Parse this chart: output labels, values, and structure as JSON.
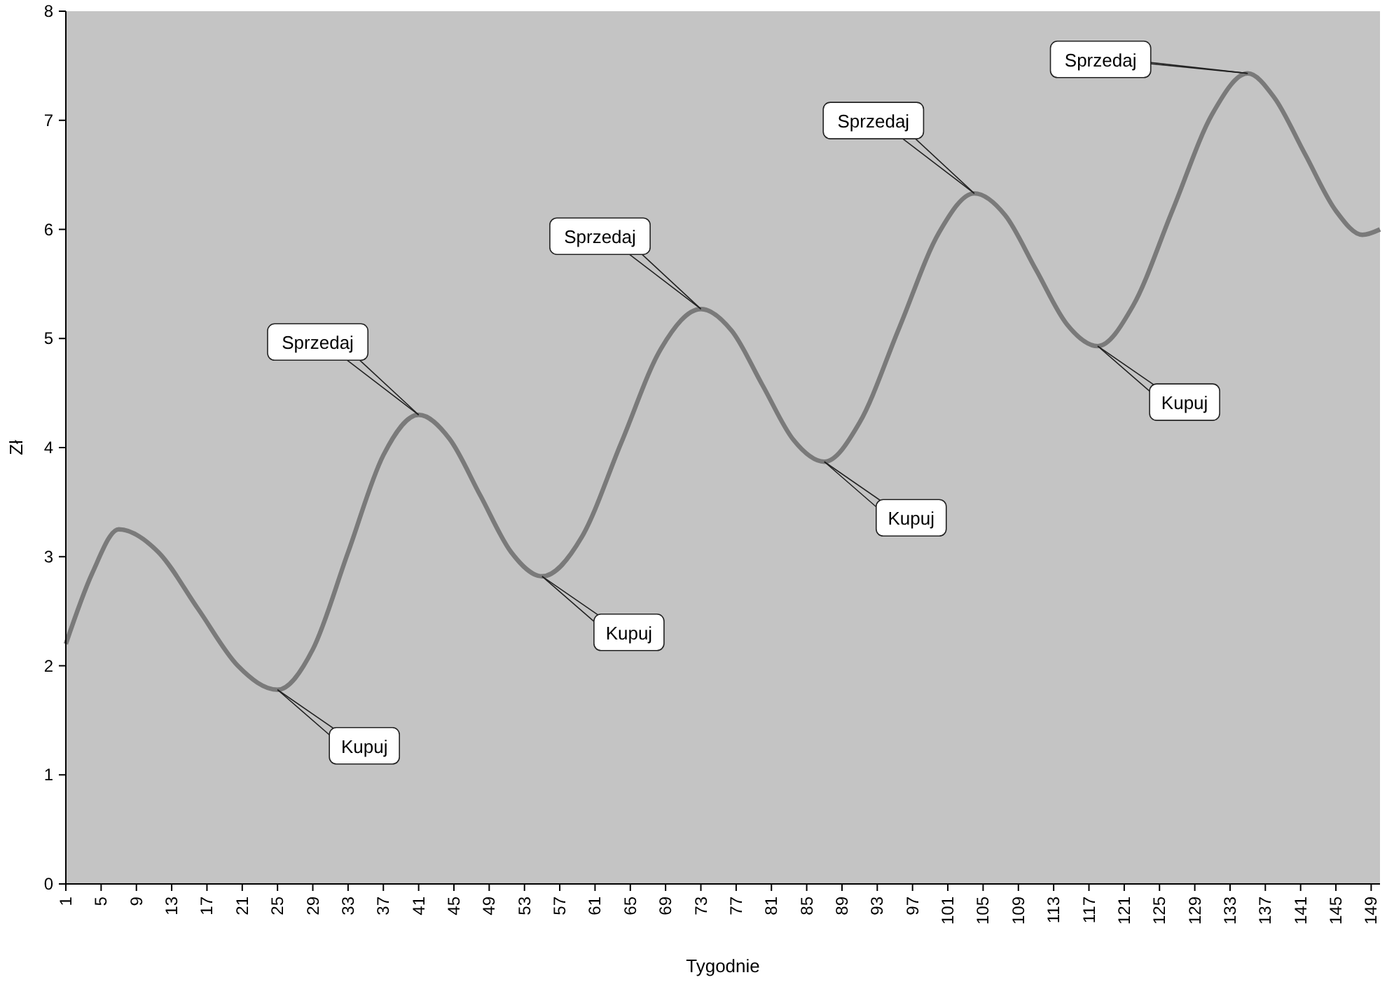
{
  "chart_data": {
    "type": "line",
    "xlabel": "Tygodnie",
    "ylabel": "Zł",
    "x": [
      1,
      4,
      7,
      11.5,
      16,
      20.5,
      25,
      29,
      33,
      37,
      41,
      44.5,
      48,
      51.5,
      55,
      59.5,
      64,
      68.5,
      73,
      76.5,
      80,
      83.5,
      87,
      91,
      95.5,
      100,
      104,
      107.5,
      111,
      114.5,
      118,
      122,
      126.5,
      131,
      135,
      138,
      141.5,
      145,
      148,
      150
    ],
    "series": [
      {
        "color": "#7a7a7a",
        "values": [
          2.2,
          2.85,
          3.25,
          3.04,
          2.52,
          2.0,
          1.78,
          2.15,
          3.04,
          3.93,
          4.3,
          4.08,
          3.56,
          3.04,
          2.82,
          3.18,
          4.05,
          4.91,
          5.27,
          5.07,
          4.57,
          4.07,
          3.87,
          4.23,
          5.1,
          5.97,
          6.33,
          6.13,
          5.63,
          5.13,
          4.93,
          5.3,
          6.18,
          7.06,
          7.43,
          7.21,
          6.69,
          6.17,
          5.95,
          6.0
        ]
      }
    ],
    "xlim": [
      1,
      150
    ],
    "xticks": [
      1,
      5,
      9,
      13,
      17,
      21,
      25,
      29,
      33,
      37,
      41,
      45,
      49,
      53,
      57,
      61,
      65,
      69,
      73,
      77,
      81,
      85,
      89,
      93,
      97,
      101,
      105,
      109,
      113,
      117,
      121,
      125,
      129,
      133,
      137,
      141,
      145,
      149
    ],
    "ylim": [
      0,
      8
    ],
    "yticks": [
      0,
      1,
      2,
      3,
      4,
      5,
      6,
      7,
      8
    ],
    "grid": false,
    "marker": "none",
    "line_style": "solid",
    "annotations": [
      {
        "text": "Kupuj",
        "x": 25,
        "y": 1.78
      },
      {
        "text": "Sprzedaj",
        "x": 41,
        "y": 4.3
      },
      {
        "text": "Kupuj",
        "x": 55,
        "y": 2.82
      },
      {
        "text": "Sprzedaj",
        "x": 73,
        "y": 5.27
      },
      {
        "text": "Kupuj",
        "x": 87,
        "y": 3.87
      },
      {
        "text": "Sprzedaj",
        "x": 104,
        "y": 6.33
      },
      {
        "text": "Kupuj",
        "x": 118,
        "y": 4.93
      },
      {
        "text": "Sprzedaj",
        "x": 135,
        "y": 7.43
      }
    ]
  }
}
